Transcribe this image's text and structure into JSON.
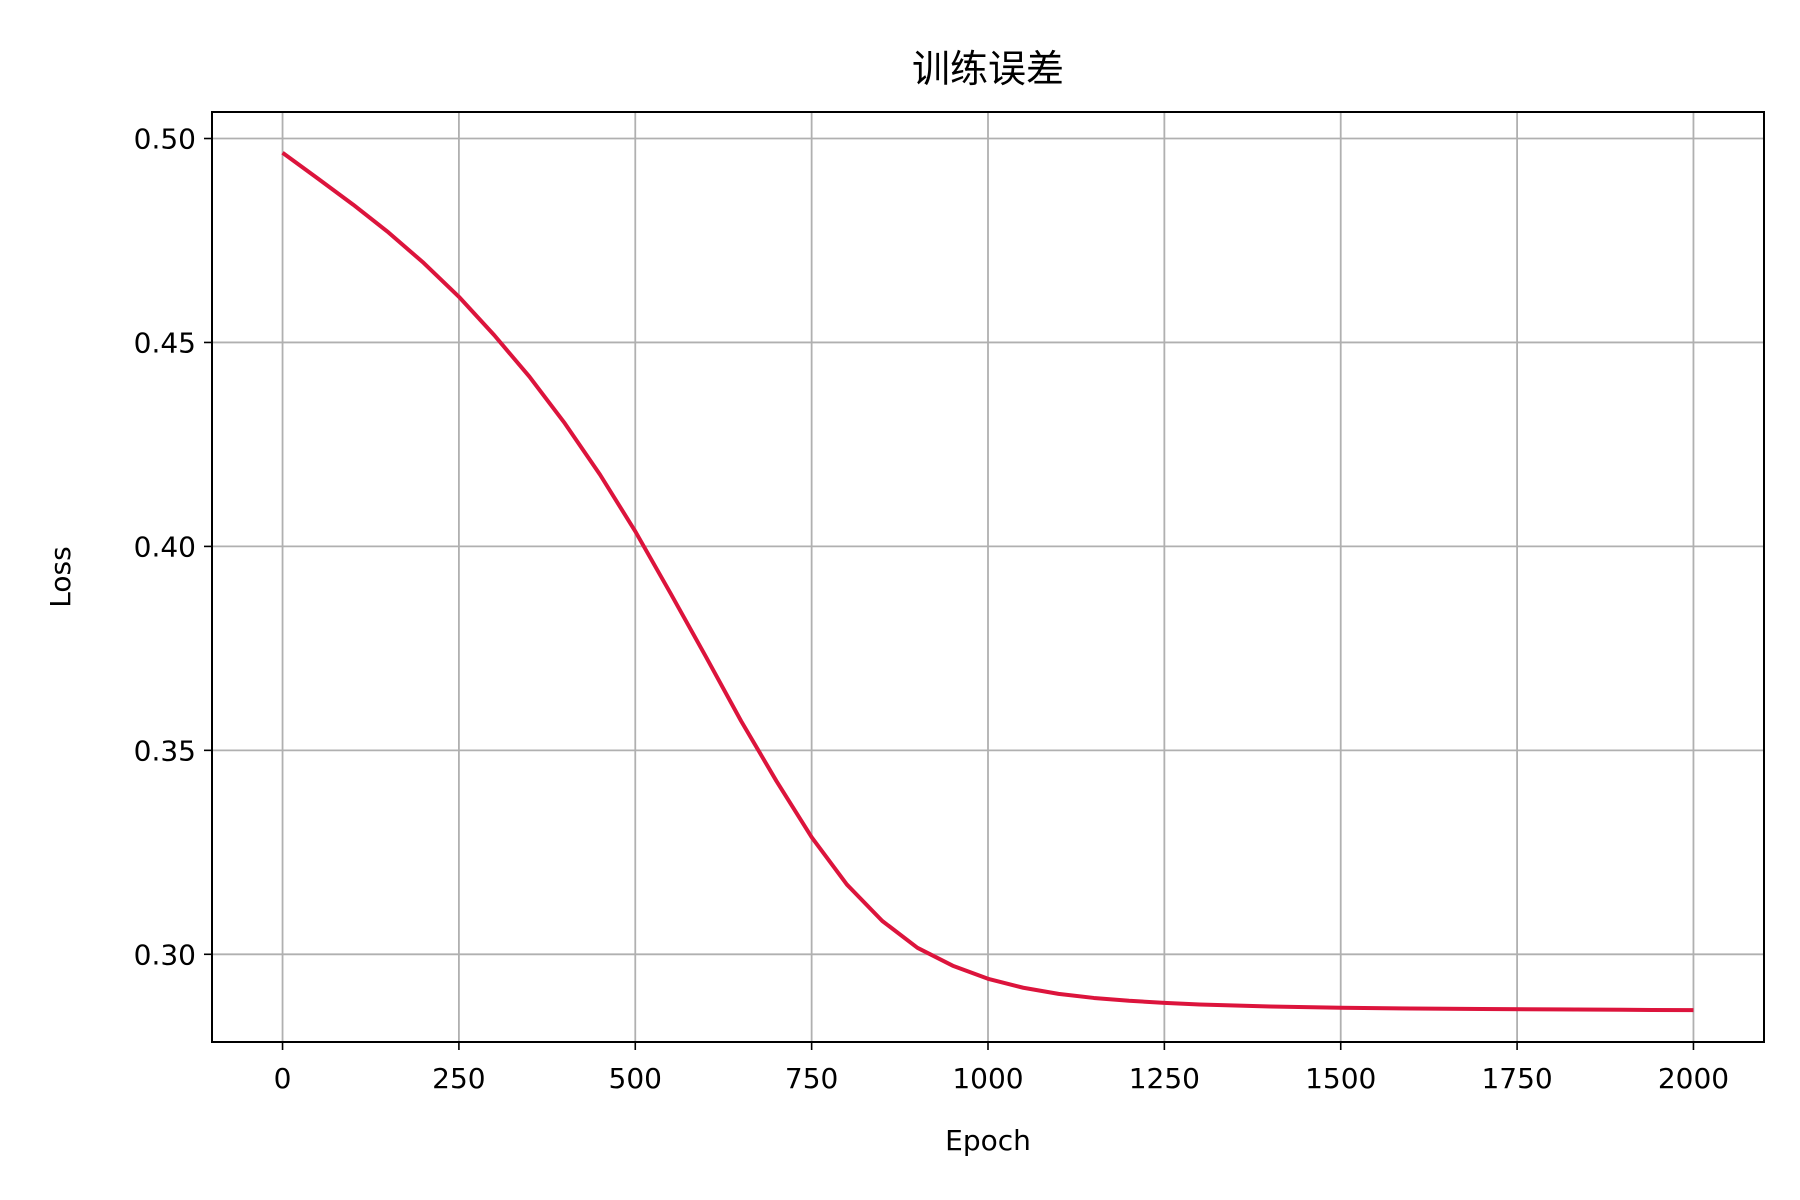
{
  "chart_data": {
    "type": "line",
    "title": "训练误差",
    "xlabel": "Epoch",
    "ylabel": "Loss",
    "xlim": [
      -100,
      2100
    ],
    "ylim": [
      0.2785,
      0.5065
    ],
    "xticks": [
      0,
      250,
      500,
      750,
      1000,
      1250,
      1500,
      1750,
      2000
    ],
    "xtick_labels": [
      "0",
      "250",
      "500",
      "750",
      "1000",
      "1250",
      "1500",
      "1750",
      "2000"
    ],
    "yticks": [
      0.3,
      0.35,
      0.4,
      0.45,
      0.5
    ],
    "ytick_labels": [
      "0.30",
      "0.35",
      "0.40",
      "0.45",
      "0.50"
    ],
    "grid": true,
    "series": [
      {
        "color": "#dc143c",
        "x": [
          0,
          50,
          100,
          150,
          200,
          250,
          300,
          350,
          400,
          450,
          500,
          550,
          600,
          650,
          700,
          750,
          800,
          850,
          900,
          950,
          1000,
          1050,
          1100,
          1150,
          1200,
          1250,
          1300,
          1400,
          1500,
          1600,
          1700,
          1800,
          1900,
          2000
        ],
        "y": [
          0.4965,
          0.4902,
          0.4838,
          0.477,
          0.4695,
          0.4612,
          0.4518,
          0.4416,
          0.4302,
          0.4176,
          0.4037,
          0.3885,
          0.373,
          0.3572,
          0.3425,
          0.3287,
          0.3171,
          0.3082,
          0.3016,
          0.2972,
          0.294,
          0.2918,
          0.2903,
          0.2893,
          0.2886,
          0.2881,
          0.2877,
          0.2872,
          0.2869,
          0.2867,
          0.2866,
          0.2865,
          0.2864,
          0.2863
        ]
      }
    ]
  }
}
